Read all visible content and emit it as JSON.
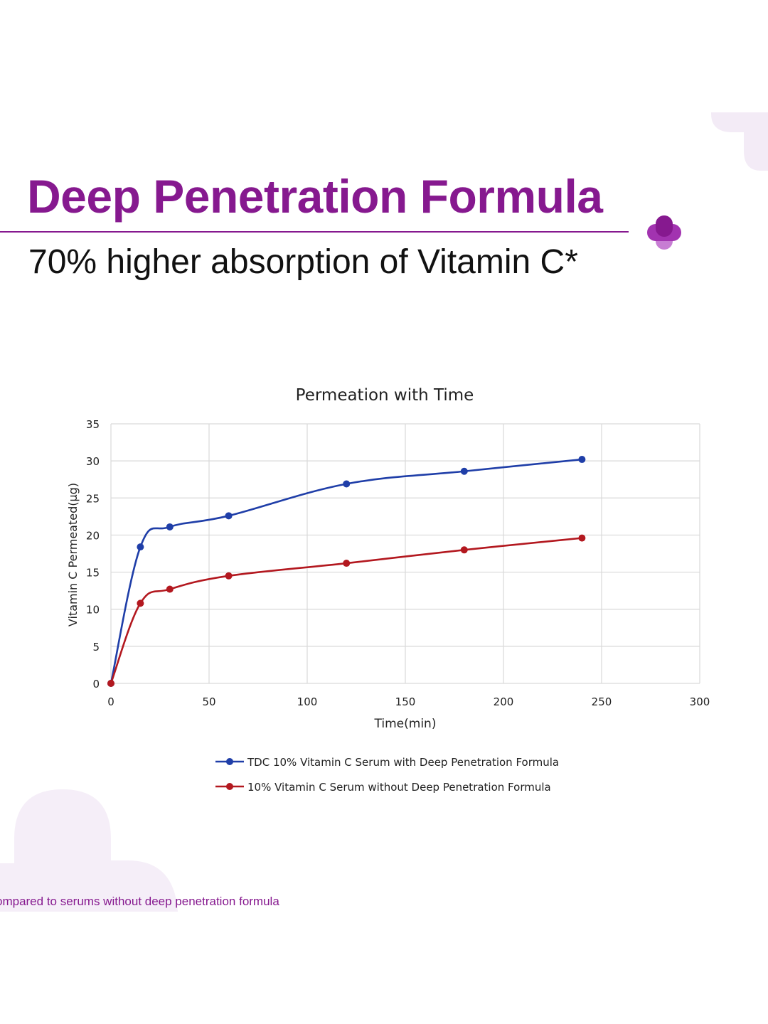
{
  "header": {
    "title": "Deep Penetration Formula",
    "subtitle": "70% higher absorption of Vitamin C*"
  },
  "footer": {
    "note": "ompared to serums without deep penetration formula"
  },
  "colors": {
    "brand": "#86198f",
    "brand_light": "#f3ebf6",
    "series_blue": "#1f3ea8",
    "series_red": "#b3181f",
    "grid": "#d9d9d9"
  },
  "icons": {
    "logo": "plus-cross-icon"
  },
  "chart_data": {
    "type": "line",
    "title": "Permeation with Time",
    "xlabel": "Time(min)",
    "ylabel": "Vitamin C Permeated(µg)",
    "xlim": [
      0,
      300
    ],
    "ylim": [
      0,
      35
    ],
    "xticks": [
      0,
      50,
      100,
      150,
      200,
      250,
      300
    ],
    "yticks": [
      0,
      5,
      10,
      15,
      20,
      25,
      30,
      35
    ],
    "grid": true,
    "smooth": true,
    "legend_position": "bottom",
    "series": [
      {
        "name": "TDC 10% Vitamin C Serum with Deep Penetration Formula",
        "color": "#1f3ea8",
        "points": [
          [
            0,
            0
          ],
          [
            15,
            18.4
          ],
          [
            30,
            21.1
          ],
          [
            60,
            22.6
          ],
          [
            120,
            26.9
          ],
          [
            180,
            28.6
          ],
          [
            240,
            30.2
          ]
        ]
      },
      {
        "name": "10% Vitamin C Serum without Deep Penetration Formula",
        "color": "#b3181f",
        "points": [
          [
            0,
            0
          ],
          [
            15,
            10.8
          ],
          [
            30,
            12.7
          ],
          [
            60,
            14.5
          ],
          [
            120,
            16.2
          ],
          [
            180,
            18.0
          ],
          [
            240,
            19.6
          ]
        ]
      }
    ]
  }
}
